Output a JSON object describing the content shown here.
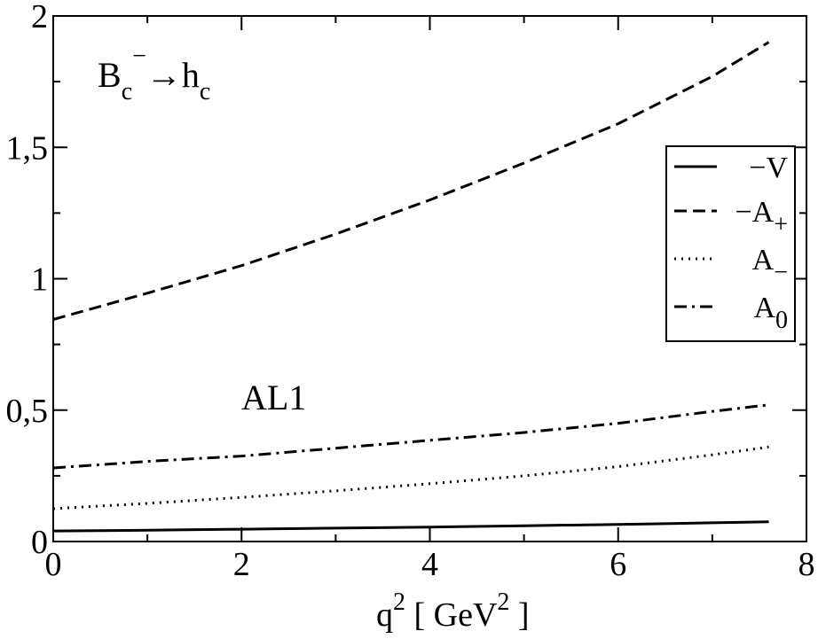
{
  "chart_data": {
    "type": "line",
    "xlabel": {
      "base": "q",
      "sup": "2",
      "mid": " [ GeV",
      "sup2": "2",
      "end": " ]"
    },
    "ylabel": "",
    "xlim": [
      0,
      8
    ],
    "ylim": [
      0,
      2
    ],
    "x_ticks": [
      {
        "value": 0,
        "label": "0"
      },
      {
        "value": 2,
        "label": "2"
      },
      {
        "value": 4,
        "label": "4"
      },
      {
        "value": 6,
        "label": "6"
      },
      {
        "value": 8,
        "label": "8"
      }
    ],
    "y_ticks": [
      {
        "value": 0,
        "label": "0"
      },
      {
        "value": 0.5,
        "label": "0,5"
      },
      {
        "value": 1,
        "label": "1"
      },
      {
        "value": 1.5,
        "label": "1,5"
      },
      {
        "value": 2,
        "label": "2"
      }
    ],
    "grid": false,
    "legend_position": "right",
    "annotations": {
      "process": {
        "B": "B",
        "sub_c": "c",
        "sup_minus": "−",
        "arrow": "→",
        "h": "h",
        "sub_c2": "c"
      },
      "model": "AL1"
    },
    "series": [
      {
        "name": {
          "main": "−V",
          "sub": ""
        },
        "style": "solid",
        "x": [
          0,
          1,
          2,
          3,
          4,
          5,
          6,
          7,
          7.6
        ],
        "y": [
          0.04,
          0.043,
          0.047,
          0.051,
          0.055,
          0.06,
          0.065,
          0.071,
          0.075
        ]
      },
      {
        "name": {
          "main": "−A",
          "sub": "+"
        },
        "style": "dashed",
        "x": [
          0,
          1,
          2,
          3,
          4,
          5,
          6,
          7,
          7.6
        ],
        "y": [
          0.845,
          0.945,
          1.05,
          1.17,
          1.3,
          1.44,
          1.59,
          1.77,
          1.9
        ]
      },
      {
        "name": {
          "main": "A",
          "sub": "−"
        },
        "style": "dotted",
        "x": [
          0,
          1,
          2,
          3,
          4,
          5,
          6,
          7,
          7.6
        ],
        "y": [
          0.125,
          0.145,
          0.168,
          0.193,
          0.22,
          0.25,
          0.285,
          0.33,
          0.36
        ]
      },
      {
        "name": {
          "main": "A",
          "sub": "0"
        },
        "style": "dashdot",
        "x": [
          0,
          1,
          2,
          3,
          4,
          5,
          6,
          7,
          7.6
        ],
        "y": [
          0.28,
          0.305,
          0.325,
          0.355,
          0.385,
          0.415,
          0.45,
          0.495,
          0.52
        ]
      }
    ]
  }
}
